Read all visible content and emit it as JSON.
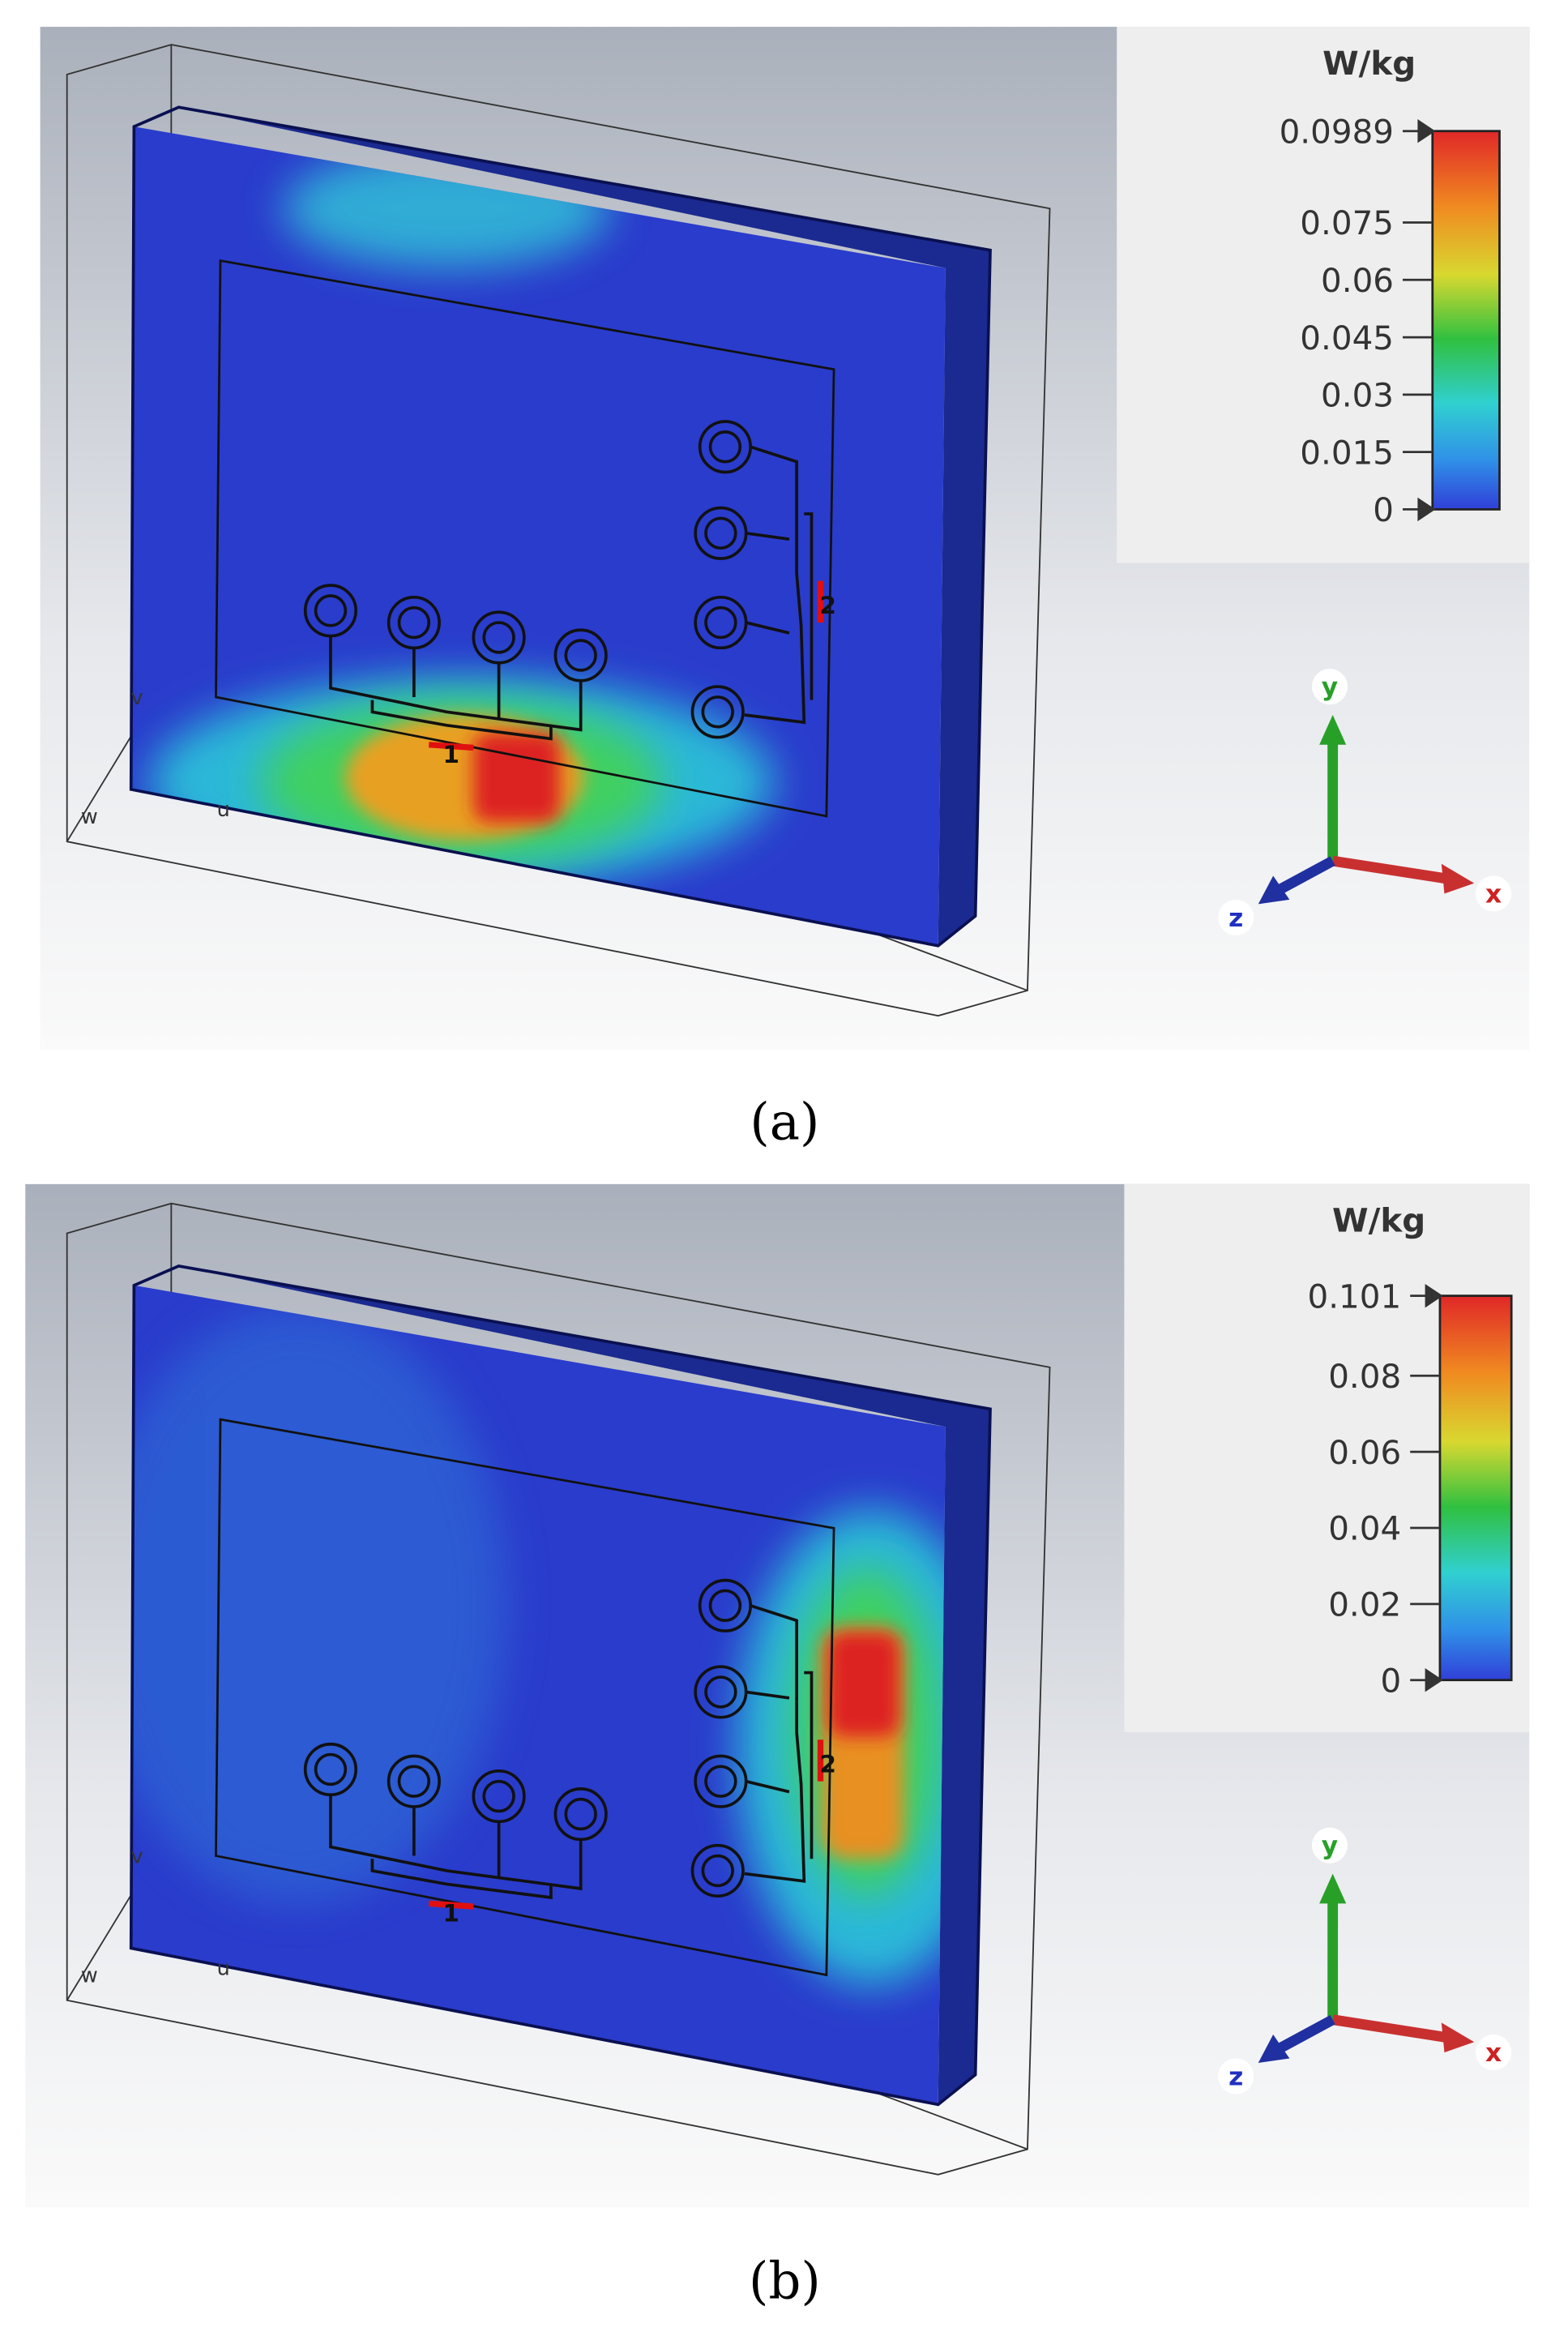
{
  "panels": [
    {
      "caption": "(a)",
      "legend": {
        "unit": "W/kg",
        "ticks": [
          0.0989,
          0.075,
          0.06,
          0.045,
          0.03,
          0.015,
          0
        ]
      },
      "ports": [
        "1",
        "2"
      ],
      "box_labels": [
        "v",
        "w",
        "u"
      ],
      "axes": [
        "x",
        "y",
        "z"
      ]
    },
    {
      "caption": "(b)",
      "legend": {
        "unit": "W/kg",
        "ticks": [
          0.101,
          0.08,
          0.06,
          0.04,
          0.02,
          0
        ]
      },
      "ports": [
        "1",
        "2"
      ],
      "box_labels": [
        "v",
        "w",
        "u"
      ],
      "axes": [
        "x",
        "y",
        "z"
      ]
    }
  ]
}
